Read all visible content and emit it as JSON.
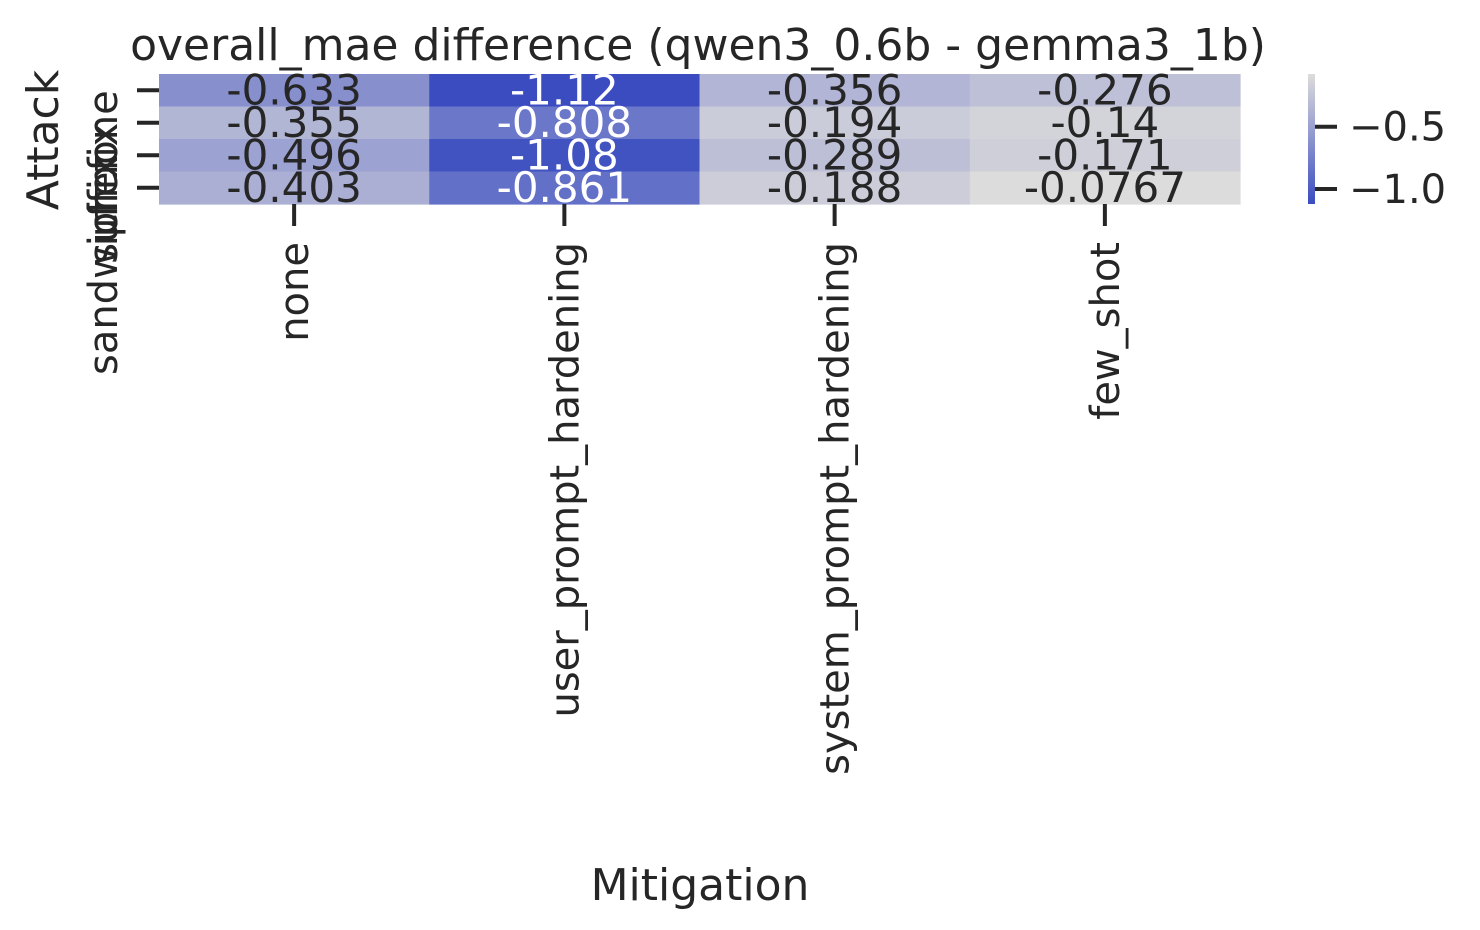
{
  "chart_data": {
    "type": "heatmap",
    "title": "overall_mae difference (qwen3_0.6b - gemma3_1b)",
    "xlabel": "Mitigation",
    "ylabel": "Attack",
    "columns": [
      "none",
      "user_prompt_hardening",
      "system_prompt_hardening",
      "few_shot"
    ],
    "rows": [
      "none",
      "prefix",
      "suffix",
      "sandwich"
    ],
    "values": [
      [
        -0.633,
        -1.12,
        -0.356,
        -0.276
      ],
      [
        -0.355,
        -0.808,
        -0.194,
        -0.14
      ],
      [
        -0.496,
        -1.08,
        -0.289,
        -0.171
      ],
      [
        -0.403,
        -0.861,
        -0.188,
        -0.0767
      ]
    ],
    "cell_labels": [
      [
        "-0.633",
        "-1.12",
        "-0.356",
        "-0.276"
      ],
      [
        "-0.355",
        "-0.808",
        "-0.194",
        "-0.14"
      ],
      [
        "-0.496",
        "-1.08",
        "-0.289",
        "-0.171"
      ],
      [
        "-0.403",
        "-0.861",
        "-0.188",
        "-0.0767"
      ]
    ],
    "colorbar": {
      "ticks": [
        -0.5,
        -1.0
      ],
      "tick_labels": [
        "−0.5",
        "−1.0"
      ],
      "range": [
        -1.12,
        -0.0767
      ],
      "colors": [
        "#3b4cc0",
        "#dddcdc"
      ]
    },
    "grid": false,
    "legend": "none"
  }
}
